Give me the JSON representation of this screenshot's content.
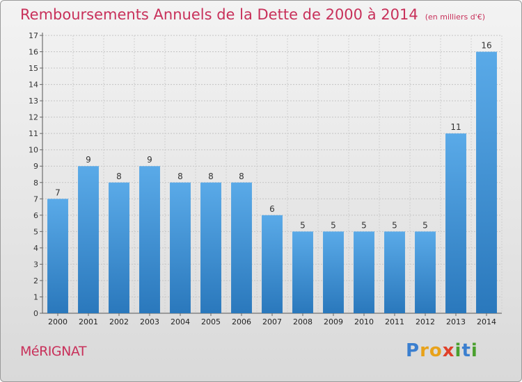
{
  "title": "Remboursements Annuels de la Dette de 2000 à 2014",
  "subtitle": "(en milliers d'€)",
  "commune": "MéRIGNAT",
  "logo": {
    "text": "Proxiti",
    "letters": [
      {
        "char": "P",
        "color": "#3b7fcf"
      },
      {
        "char": "r",
        "color": "#e8a21a"
      },
      {
        "char": "o",
        "color": "#e8a21a"
      },
      {
        "char": "x",
        "color": "#e0402a"
      },
      {
        "char": "i",
        "color": "#4aa02e"
      },
      {
        "char": "t",
        "color": "#3b7fcf"
      },
      {
        "char": "i",
        "color": "#4aa02e"
      }
    ]
  },
  "chart_data": {
    "type": "bar",
    "title": "Remboursements Annuels de la Dette de 2000 à 2014",
    "subtitle": "(en milliers d'€)",
    "categories": [
      "2000",
      "2001",
      "2002",
      "2003",
      "2004",
      "2005",
      "2006",
      "2007",
      "2008",
      "2009",
      "2010",
      "2011",
      "2012",
      "2013",
      "2014"
    ],
    "values": [
      7,
      9,
      8,
      9,
      8,
      8,
      8,
      6,
      5,
      5,
      5,
      5,
      5,
      11,
      16
    ],
    "value_labels": [
      "7",
      "9",
      "8",
      "9",
      "8",
      "8",
      "8",
      "6",
      "5",
      "5",
      "5",
      "5",
      "5",
      "11",
      "16"
    ],
    "yticks": [
      "0",
      "1",
      "2",
      "3",
      "4",
      "5",
      "6",
      "7",
      "8",
      "9",
      "10",
      "11",
      "12",
      "13",
      "14",
      "15",
      "16",
      "17"
    ],
    "ylim": [
      0,
      17
    ],
    "xlabel": "",
    "ylabel": "",
    "grid": true,
    "bar_color_top": "#5aaae8",
    "bar_color_bottom": "#2a78bc"
  }
}
